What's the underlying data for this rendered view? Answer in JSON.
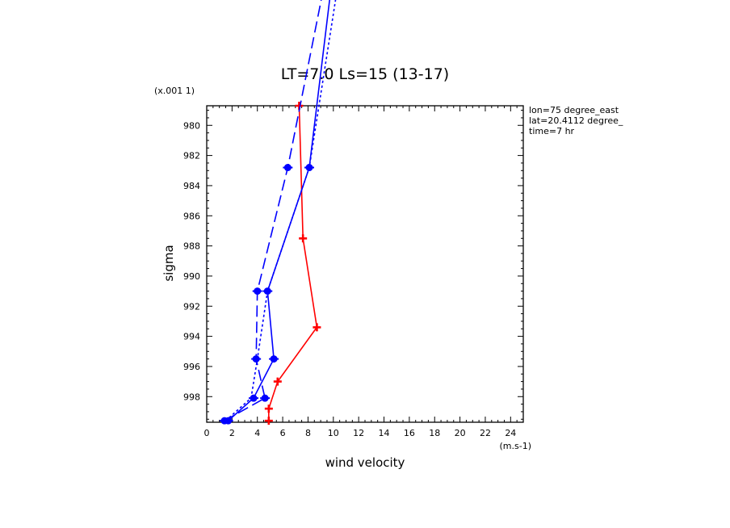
{
  "chart_data": {
    "type": "line",
    "title": "LT=7.0  Ls=15 (13-17)",
    "xlabel": "wind velocity",
    "ylabel": "sigma",
    "x_unit": "(m.s-1)",
    "y_unit": "(x.001 1)",
    "xlim": [
      0,
      25
    ],
    "ylim": [
      999.7,
      978.7
    ],
    "x_ticks": [
      "0",
      "2",
      "4",
      "6",
      "8",
      "10",
      "12",
      "14",
      "16",
      "18",
      "20",
      "22",
      "24"
    ],
    "x_tick_values": [
      0,
      2,
      4,
      6,
      8,
      10,
      12,
      14,
      16,
      18,
      20,
      22,
      24
    ],
    "y_ticks": [
      "980",
      "982",
      "984",
      "986",
      "988",
      "990",
      "992",
      "994",
      "996",
      "998"
    ],
    "y_tick_values": [
      980,
      982,
      984,
      986,
      988,
      990,
      992,
      994,
      996,
      998
    ],
    "grid": false,
    "annotations": [
      "lon=75 degree_east",
      "lat=20.4112 degree_",
      "time=7 hr"
    ],
    "series": [
      {
        "color": "#ff0000",
        "style": "solid",
        "marker": "plus",
        "points": [
          {
            "x": 7.3,
            "y": 978.7
          },
          {
            "x": 7.6,
            "y": 987.5
          },
          {
            "x": 8.7,
            "y": 993.4
          },
          {
            "x": 5.6,
            "y": 997.0
          },
          {
            "x": 4.9,
            "y": 998.8
          },
          {
            "x": 4.9,
            "y": 999.6
          }
        ]
      },
      {
        "color": "#0000ff",
        "style": "solid",
        "marker": "dot",
        "points": [
          {
            "x": 9.8,
            "y": 971.0
          },
          {
            "x": 8.1,
            "y": 982.8
          },
          {
            "x": 4.8,
            "y": 991.0
          },
          {
            "x": 5.3,
            "y": 995.5
          },
          {
            "x": 3.7,
            "y": 998.1
          },
          {
            "x": 1.7,
            "y": 999.6
          }
        ]
      },
      {
        "color": "#0000ff",
        "style": "dashed",
        "marker": "dot",
        "points": [
          {
            "x": 9.2,
            "y": 971.0
          },
          {
            "x": 6.4,
            "y": 982.8
          },
          {
            "x": 4.0,
            "y": 991.0
          },
          {
            "x": 3.9,
            "y": 995.5
          },
          {
            "x": 4.6,
            "y": 998.1
          },
          {
            "x": 1.4,
            "y": 999.6
          }
        ]
      },
      {
        "color": "#0000ff",
        "style": "dotted",
        "marker": "none",
        "points": [
          {
            "x": 10.3,
            "y": 971.0
          },
          {
            "x": 8.1,
            "y": 982.8
          },
          {
            "x": 4.8,
            "y": 991.0
          },
          {
            "x": 4.0,
            "y": 995.5
          },
          {
            "x": 3.5,
            "y": 998.1
          },
          {
            "x": 1.5,
            "y": 999.6
          }
        ]
      }
    ]
  }
}
